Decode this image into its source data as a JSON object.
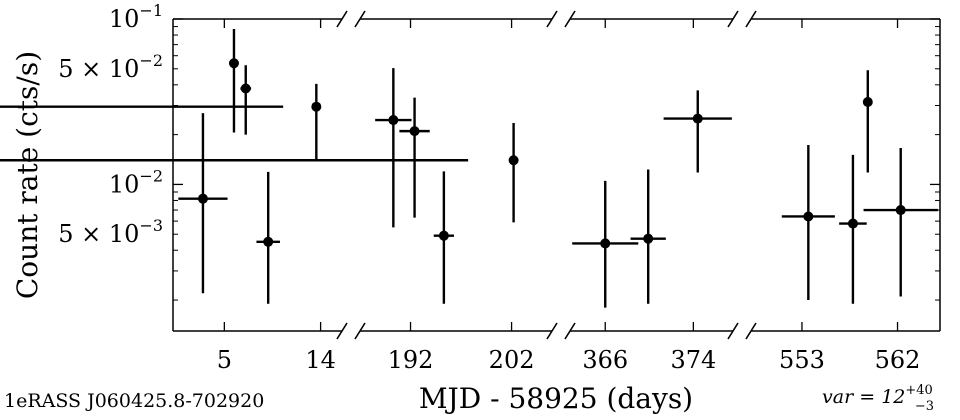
{
  "chart_data": {
    "type": "scatter",
    "title": "",
    "xlabel": "MJD - 58925 (days)",
    "ylabel": "Count rate (cts/s)",
    "yscale": "log",
    "ylim": [
      0.0013,
      0.1
    ],
    "broken_x_axis": true,
    "segments": [
      {
        "xlim": [
          0.2,
          16.0
        ],
        "ticks": [
          5,
          14
        ]
      },
      {
        "xlim": [
          187.0,
          206.0
        ],
        "ticks": [
          192,
          202
        ]
      },
      {
        "xlim": [
          362.8,
          377.6
        ],
        "ticks": [
          366,
          374
        ]
      },
      {
        "xlim": [
          548.2,
          566.0
        ],
        "ticks": [
          553,
          562
        ]
      }
    ],
    "yticks": [
      {
        "value": 0.1,
        "base": "10",
        "exp": "−1"
      },
      {
        "value": 0.05,
        "mant": "5",
        "base": "10",
        "exp": "−2"
      },
      {
        "value": 0.01,
        "base": "10",
        "exp": "−2"
      },
      {
        "value": 0.005,
        "mant": "5",
        "base": "10",
        "exp": "−3"
      }
    ],
    "points": [
      {
        "x": 3.0,
        "xerr": 2.3,
        "y": 0.0082,
        "ylo": 0.0022,
        "yhi": 0.027
      },
      {
        "x": 5.9,
        "xerr": 0.0,
        "y": 0.054,
        "ylo": 0.0206,
        "yhi": 0.087
      },
      {
        "x": 7.0,
        "xerr": 0.5,
        "y": 0.038,
        "ylo": 0.02,
        "yhi": 0.0525
      },
      {
        "x": 9.1,
        "xerr": 1.1,
        "y": 0.0045,
        "ylo": 0.0019,
        "yhi": 0.0119
      },
      {
        "x": 13.6,
        "xerr": 3.1,
        "y": 0.0295,
        "ylo": 0.0142,
        "yhi": 0.0405
      },
      {
        "x": 190.3,
        "xerr": 1.8,
        "y": 0.0245,
        "ylo": 0.0055,
        "yhi": 0.0505
      },
      {
        "x": 192.4,
        "xerr": 1.5,
        "y": 0.021,
        "ylo": 0.0063,
        "yhi": 0.0335
      },
      {
        "x": 195.3,
        "xerr": 1.0,
        "y": 0.0049,
        "ylo": 0.0019,
        "yhi": 0.012
      },
      {
        "x": 202.2,
        "xerr": 4.5,
        "y": 0.014,
        "ylo": 0.0059,
        "yhi": 0.0235
      },
      {
        "x": 366.0,
        "xerr": 3.0,
        "y": 0.0044,
        "ylo": 0.0018,
        "yhi": 0.0105
      },
      {
        "x": 369.9,
        "xerr": 1.6,
        "y": 0.0047,
        "ylo": 0.0019,
        "yhi": 0.0123
      },
      {
        "x": 374.4,
        "xerr": 3.1,
        "y": 0.025,
        "ylo": 0.0118,
        "yhi": 0.037
      },
      {
        "x": 553.6,
        "xerr": 2.5,
        "y": 0.0064,
        "ylo": 0.002,
        "yhi": 0.0173
      },
      {
        "x": 557.8,
        "xerr": 1.3,
        "y": 0.0058,
        "ylo": 0.0019,
        "yhi": 0.0151
      },
      {
        "x": 559.2,
        "xerr": 0.4,
        "y": 0.0315,
        "ylo": 0.0118,
        "yhi": 0.049
      },
      {
        "x": 562.3,
        "xerr": 3.5,
        "y": 0.007,
        "ylo": 0.0021,
        "yhi": 0.0166
      }
    ],
    "marker_color": "#000000"
  },
  "source_name": "1eRASS J060425.8-702920",
  "variability": {
    "label": "var",
    "value": "12",
    "plus": "+40",
    "minus": "−3"
  }
}
